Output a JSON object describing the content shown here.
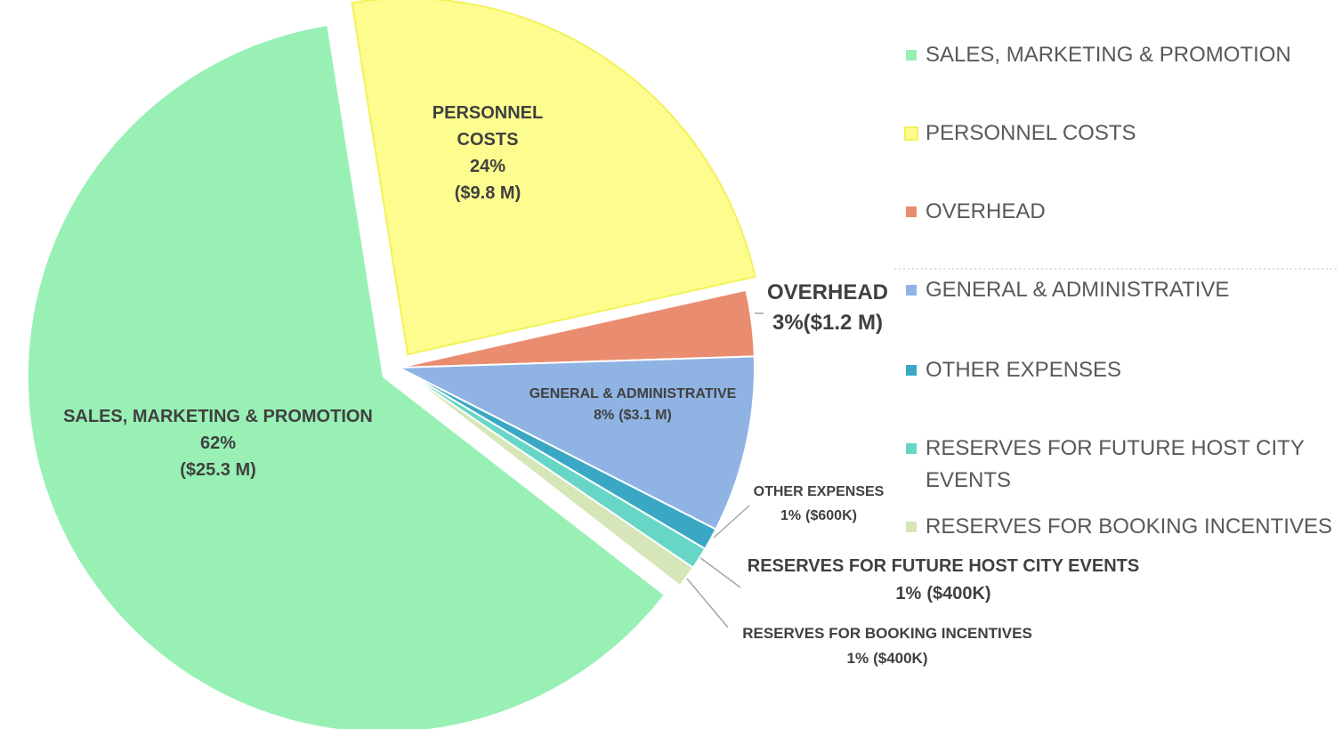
{
  "chart_data": {
    "type": "pie",
    "categories": [
      "SALES, MARKETING & PROMOTION",
      "PERSONNEL COSTS",
      "OVERHEAD",
      "GENERAL & ADMINISTRATIVE",
      "OTHER EXPENSES",
      "RESERVES FOR FUTURE HOST CITY EVENTS",
      "RESERVES FOR BOOKING INCENTIVES"
    ],
    "values": [
      62,
      24,
      3,
      8,
      1,
      1,
      1
    ],
    "value_labels": [
      "62%",
      "24%",
      "3%",
      "8%",
      "1%",
      "1%",
      "1%"
    ],
    "amount_labels": [
      "($25.3 M)",
      "($9.8 M)",
      "($1.2 M)",
      "($3.1 M)",
      "($600K)",
      "($400K)",
      "($400K)"
    ],
    "colors": [
      "#98f0b5",
      "#fcfc8f",
      "#ea8c6f",
      "#8fb3e3",
      "#3aa8c4",
      "#67d6c6",
      "#d6e6b8"
    ],
    "legend": "right"
  }
}
